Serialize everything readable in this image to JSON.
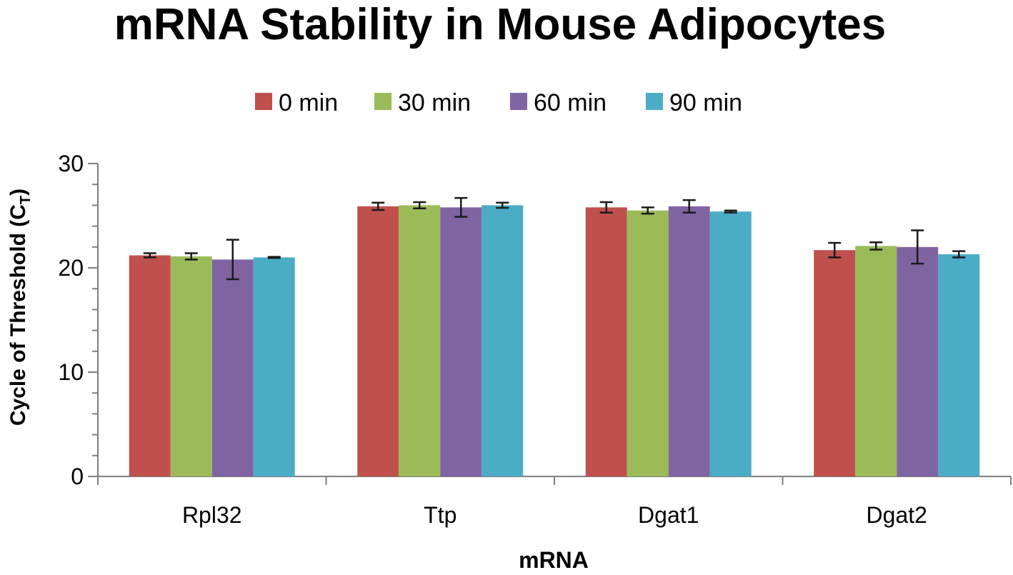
{
  "chart_data": {
    "type": "bar",
    "title": "mRNA Stability in Mouse Adipocytes",
    "xlabel": "mRNA",
    "ylabel_main": "Cycle of Threshold (C",
    "ylabel_sub": "T",
    "ylabel_close": ")",
    "categories": [
      "Rpl32",
      "Ttp",
      "Dgat1",
      "Dgat2"
    ],
    "ylim": [
      0,
      30
    ],
    "yticks": [
      0,
      10,
      20,
      30
    ],
    "minor_tick_step": 2,
    "grid": false,
    "legend_position": "top",
    "series": [
      {
        "name": "0 min",
        "color": "#c0504d",
        "values": [
          21.2,
          25.9,
          25.8,
          21.7
        ],
        "errors": [
          0.2,
          0.35,
          0.5,
          0.7
        ]
      },
      {
        "name": "30 min",
        "color": "#9bbb59",
        "values": [
          21.1,
          26.0,
          25.5,
          22.1
        ],
        "errors": [
          0.3,
          0.3,
          0.3,
          0.35
        ]
      },
      {
        "name": "60 min",
        "color": "#8064a2",
        "values": [
          20.8,
          25.8,
          25.9,
          22.0
        ],
        "errors": [
          1.9,
          0.9,
          0.6,
          1.6
        ]
      },
      {
        "name": "90 min",
        "color": "#4bacc6",
        "values": [
          21.0,
          26.0,
          25.4,
          21.3
        ],
        "errors": [
          0.05,
          0.25,
          0.1,
          0.3
        ]
      }
    ]
  }
}
